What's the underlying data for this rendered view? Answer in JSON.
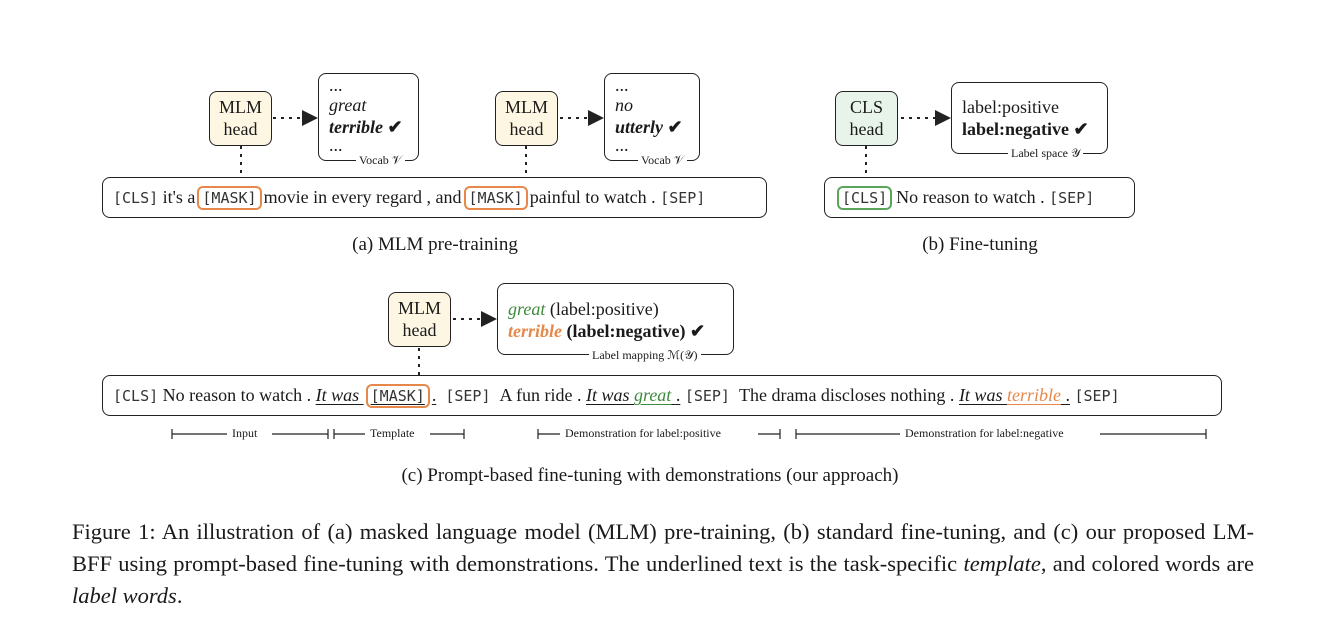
{
  "panel_a": {
    "head1_line1": "MLM",
    "head1_line2": "head",
    "vocab1": {
      "dots_top": "...",
      "word1": "great",
      "word2": "terrible",
      "check": "✔",
      "dots_bottom": "...",
      "label": "Vocab 𝒱"
    },
    "head2_line1": "MLM",
    "head2_line2": "head",
    "vocab2": {
      "dots_top": "...",
      "word1": "no",
      "word2": "utterly",
      "check": "✔",
      "dots_bottom": "...",
      "label": "Vocab 𝒱"
    },
    "seq": {
      "cls": "[CLS]",
      "t1": "it's a",
      "mask1": "[MASK]",
      "t2": "movie in every regard , and",
      "mask2": "[MASK]",
      "t3": "painful to watch .",
      "sep": "[SEP]"
    },
    "caption": "(a) MLM pre-training"
  },
  "panel_b": {
    "head_line1": "CLS",
    "head_line2": "head",
    "labels": {
      "l1": "label:positive",
      "l2": "label:negative",
      "check": "✔",
      "caption": "Label space 𝒴"
    },
    "seq": {
      "cls": "[CLS]",
      "t1": "No reason to watch .",
      "sep": "[SEP]"
    },
    "caption": "(b) Fine-tuning"
  },
  "panel_c": {
    "head_line1": "MLM",
    "head_line2": "head",
    "mapping": {
      "w1": "great",
      "l1": "(label:positive)",
      "w2": "terrible",
      "l2": "(label:negative)",
      "check": "✔",
      "caption": "Label mapping ℳ(𝒴)"
    },
    "seq": {
      "cls": "[CLS]",
      "t1": "No reason to watch .",
      "tmpl1": "It was",
      "mask": "[MASK]",
      "dot1": ".",
      "sep1": "[SEP]",
      "t2": "A fun ride .",
      "tmpl2": "It was",
      "w_great": "great",
      "dot2": ".",
      "sep2": "[SEP]",
      "t3": "The drama discloses nothing .",
      "tmpl3": "It was",
      "w_terrible": "terrible",
      "dot3": ".",
      "sep3": "[SEP]"
    },
    "segments": {
      "input": "Input",
      "template": "Template",
      "demo_pos": "Demonstration for label:positive",
      "demo_neg": "Demonstration for label:negative"
    },
    "caption": "(c) Prompt-based fine-tuning with demonstrations (our approach)"
  },
  "figure_caption": {
    "prefix": "Figure 1: An illustration of (a) masked language model (MLM) pre-training, (b) standard fine-tuning, and (c) our proposed LM-BFF using prompt-based fine-tuning with demonstrations. The underlined text is the task-specific ",
    "template_word": "template",
    "middle": ", and colored words are ",
    "label_words": "label words",
    "suffix": "."
  },
  "colors": {
    "mask_orange": "#e6884a",
    "cls_green": "#5aa55a",
    "mlm_fill": "#fdf6e3",
    "cls_fill": "#e8f3ea"
  }
}
